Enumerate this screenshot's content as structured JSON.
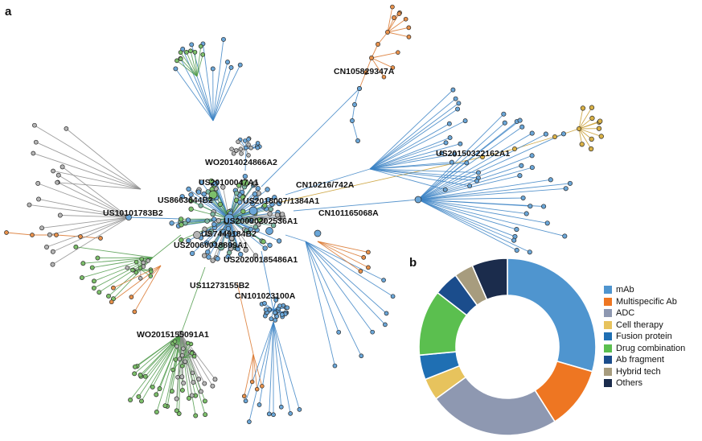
{
  "panel_a_label": "a",
  "panel_b_label": "b",
  "network": {
    "node_labels": [
      "CN105829347A",
      "US20150322162A1",
      "WO2014024866A2",
      "US20100047A1",
      "CN10216/742A",
      "US2018007/1384A1",
      "US8663644B2",
      "US10101783B2",
      "CN101165068A",
      "US20090202536A1",
      "US7449184B2",
      "US20060018899A1",
      "US20200185486A1",
      "US11273155B2",
      "CN101023100A",
      "WO2015155091A1"
    ]
  },
  "chart_data": {
    "type": "pie",
    "donut": true,
    "categories": [
      "mAb",
      "Multispecific Ab",
      "ADC",
      "Cell therapy",
      "Fusion protein",
      "Drug combination",
      "Ab fragment",
      "Hybrid tech",
      "Others"
    ],
    "values": [
      29.5,
      11.5,
      24.0,
      4.0,
      4.5,
      12.0,
      4.5,
      3.5,
      6.5
    ],
    "unit": "%",
    "colors": [
      "#4f95cf",
      "#ee7622",
      "#8e98b1",
      "#e7c35d",
      "#1f6fb3",
      "#5bbf4f",
      "#1b4d8c",
      "#a79c7e",
      "#1b2c4c"
    ],
    "legend_position": "right"
  }
}
